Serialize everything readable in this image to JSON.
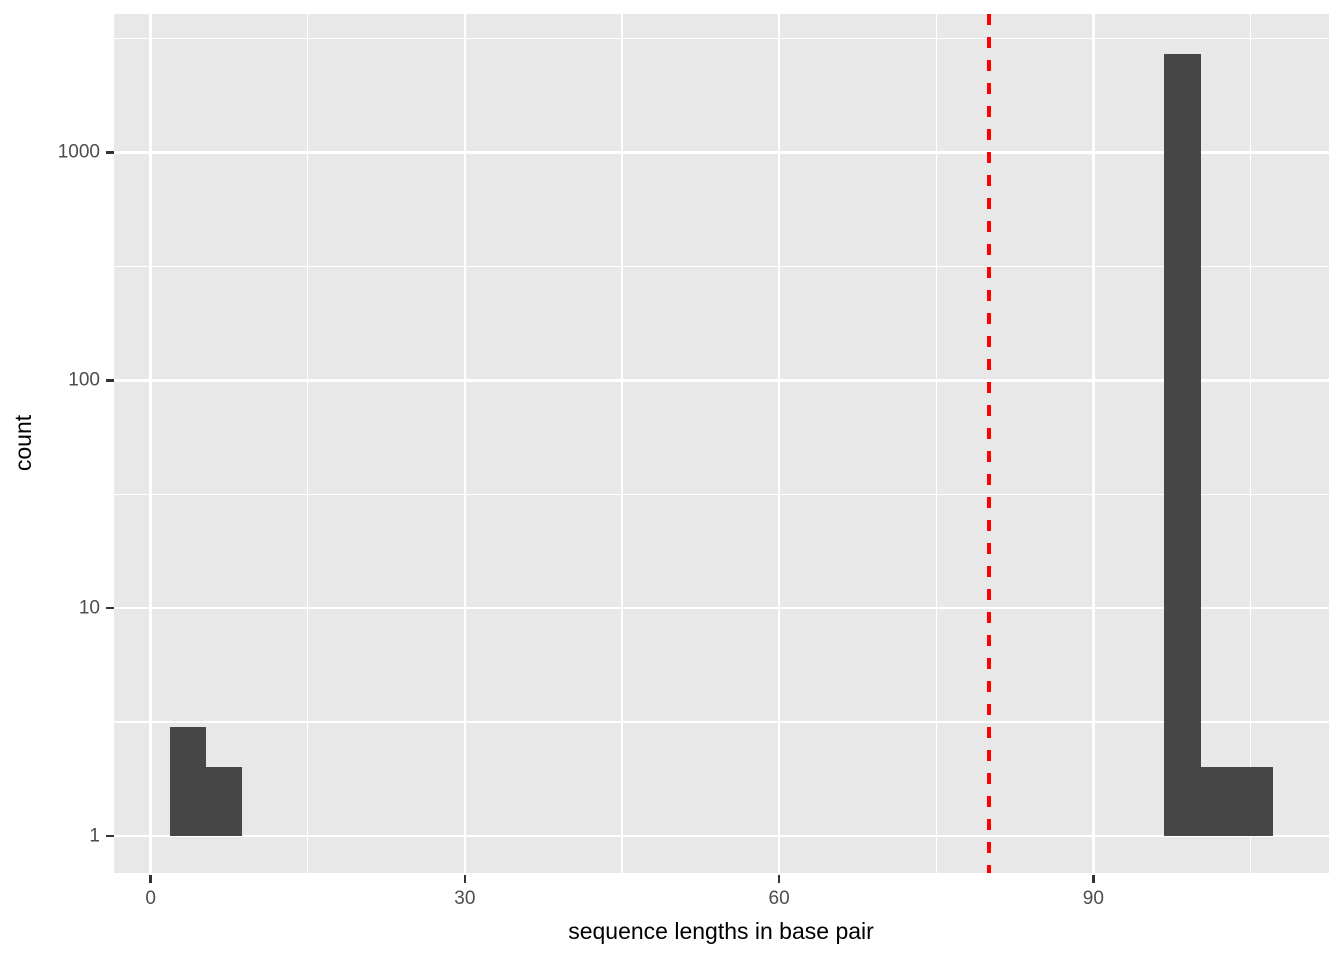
{
  "chart_data": {
    "type": "bar",
    "subtype": "histogram",
    "title": "",
    "xlabel": "sequence lengths in base pair",
    "ylabel": "count",
    "x_scale": "linear",
    "y_scale": "log10",
    "x_domain": [
      -3.5,
      112.5
    ],
    "y_log_domain": [
      -0.162,
      3.607
    ],
    "x_major_ticks": [
      0,
      30,
      60,
      90
    ],
    "x_minor_ticks": [
      15,
      45,
      75,
      105
    ],
    "y_major_ticks": [
      1,
      10,
      100,
      1000
    ],
    "y_minor_ticks": [
      3.162,
      31.62,
      316.2,
      3162
    ],
    "bar_base": 1,
    "bins": [
      {
        "x0": 1.8,
        "x1": 5.3,
        "count": 3
      },
      {
        "x0": 5.3,
        "x1": 8.7,
        "count": 2
      },
      {
        "x0": 96.7,
        "x1": 100.3,
        "count": 2690
      },
      {
        "x0": 100.3,
        "x1": 103.7,
        "count": 2
      },
      {
        "x0": 103.7,
        "x1": 107.2,
        "count": 2
      }
    ],
    "vline": {
      "x": 80,
      "color": "#FF0000",
      "style": "dashed"
    },
    "legend": "none",
    "grid": true,
    "colors": {
      "bar_fill": "#464646",
      "panel_background": "#E8E8E8",
      "grid_line": "#FFFFFF",
      "tick_label": "#4D4D4D",
      "axis_title": "#000000",
      "tick_mark": "#333333",
      "vline": "#FF0000"
    }
  }
}
